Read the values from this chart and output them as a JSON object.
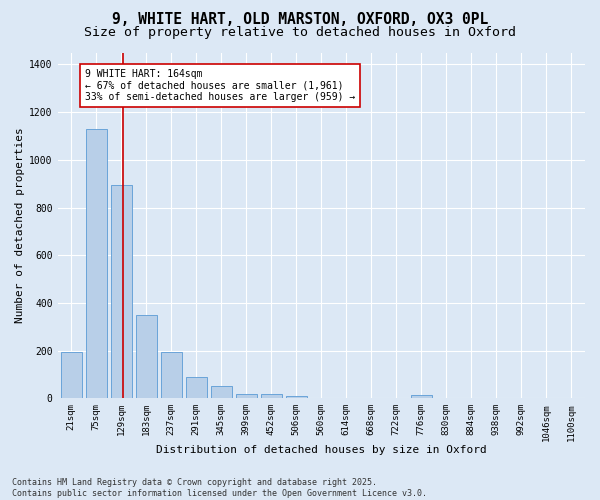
{
  "title_line1": "9, WHITE HART, OLD MARSTON, OXFORD, OX3 0PL",
  "title_line2": "Size of property relative to detached houses in Oxford",
  "xlabel": "Distribution of detached houses by size in Oxford",
  "ylabel": "Number of detached properties",
  "bin_labels": [
    "21sqm",
    "75sqm",
    "129sqm",
    "183sqm",
    "237sqm",
    "291sqm",
    "345sqm",
    "399sqm",
    "452sqm",
    "506sqm",
    "560sqm",
    "614sqm",
    "668sqm",
    "722sqm",
    "776sqm",
    "830sqm",
    "884sqm",
    "938sqm",
    "992sqm",
    "1046sqm",
    "1100sqm"
  ],
  "bar_heights": [
    193,
    1130,
    893,
    350,
    195,
    90,
    52,
    20,
    18,
    11,
    0,
    0,
    0,
    0,
    13,
    0,
    0,
    0,
    0,
    0,
    0
  ],
  "bar_color": "#b8cfe8",
  "bar_edge_color": "#5b9bd5",
  "background_color": "#dce8f5",
  "plot_bg_color": "#dce8f5",
  "grid_color": "#ffffff",
  "annotation_text": "9 WHITE HART: 164sqm\n← 67% of detached houses are smaller (1,961)\n33% of semi-detached houses are larger (959) →",
  "annotation_box_facecolor": "#ffffff",
  "annotation_box_edgecolor": "#cc0000",
  "red_line_color": "#cc0000",
  "red_line_x": 2.07,
  "ylim": [
    0,
    1450
  ],
  "yticks": [
    0,
    200,
    400,
    600,
    800,
    1000,
    1200,
    1400
  ],
  "footer_line1": "Contains HM Land Registry data © Crown copyright and database right 2025.",
  "footer_line2": "Contains public sector information licensed under the Open Government Licence v3.0.",
  "title_fontsize": 10.5,
  "subtitle_fontsize": 9.5,
  "axis_label_fontsize": 8,
  "tick_fontsize": 6.5,
  "annotation_fontsize": 7,
  "footer_fontsize": 6
}
